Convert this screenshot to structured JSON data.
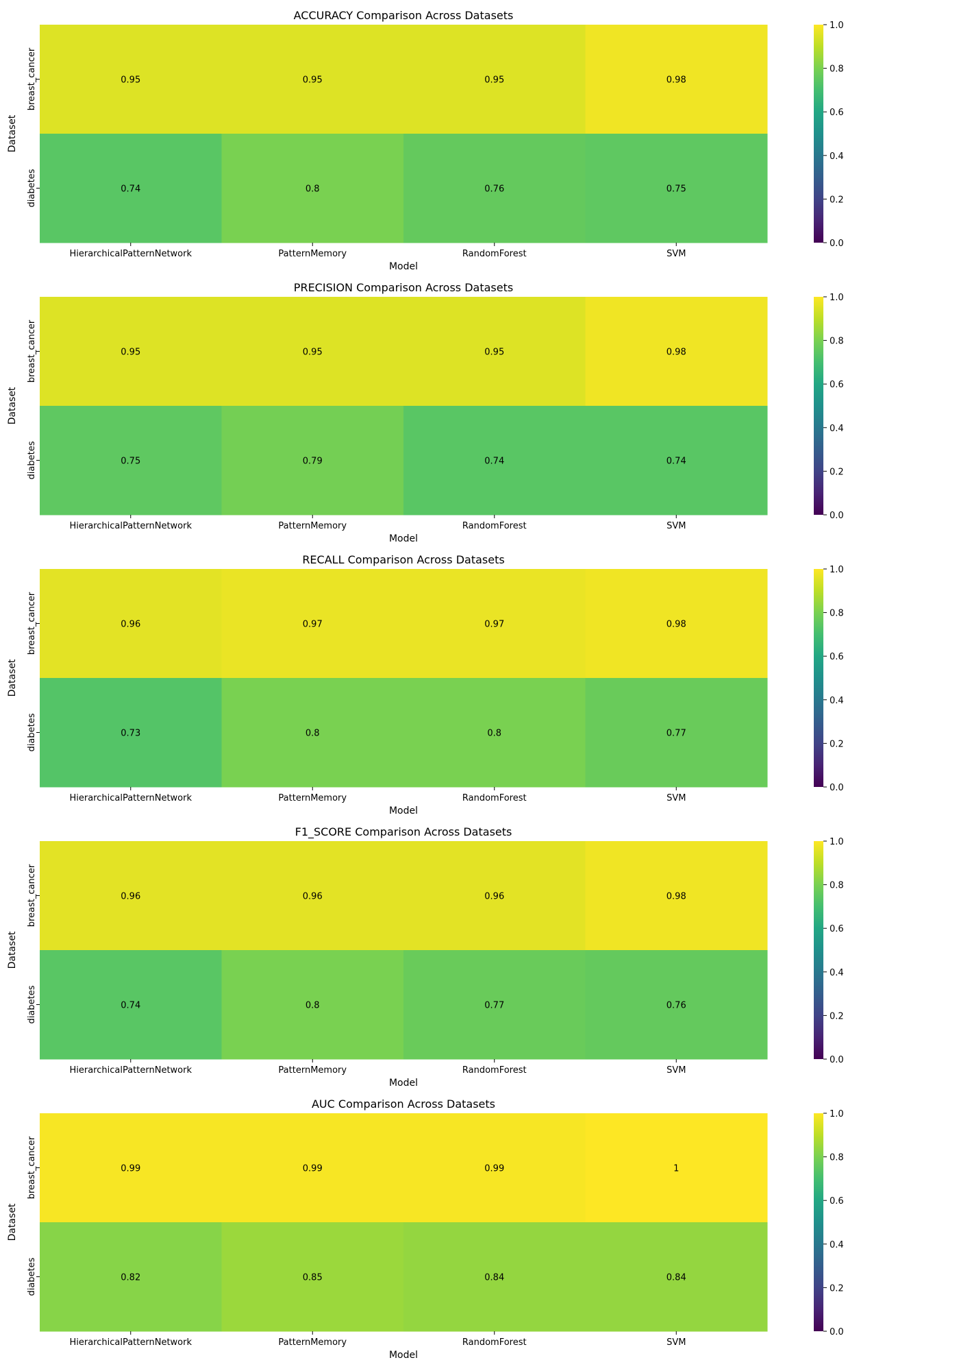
{
  "chart_data": [
    {
      "type": "heatmap",
      "title": "ACCURACY Comparison Across Datasets",
      "xlabel": "Model",
      "ylabel": "Dataset",
      "x": [
        "HierarchicalPatternNetwork",
        "PatternMemory",
        "RandomForest",
        "SVM"
      ],
      "y": [
        "breast_cancer",
        "diabetes"
      ],
      "values": [
        [
          0.95,
          0.95,
          0.95,
          0.98
        ],
        [
          0.74,
          0.8,
          0.76,
          0.75
        ]
      ],
      "colorbar": {
        "range": [
          0,
          1
        ],
        "ticks": [
          "0.0",
          "0.2",
          "0.4",
          "0.6",
          "0.8",
          "1.0"
        ]
      },
      "colormap": "viridis"
    },
    {
      "type": "heatmap",
      "title": "PRECISION Comparison Across Datasets",
      "xlabel": "Model",
      "ylabel": "Dataset",
      "x": [
        "HierarchicalPatternNetwork",
        "PatternMemory",
        "RandomForest",
        "SVM"
      ],
      "y": [
        "breast_cancer",
        "diabetes"
      ],
      "values": [
        [
          0.95,
          0.95,
          0.95,
          0.98
        ],
        [
          0.75,
          0.79,
          0.74,
          0.74
        ]
      ],
      "colorbar": {
        "range": [
          0,
          1
        ],
        "ticks": [
          "0.0",
          "0.2",
          "0.4",
          "0.6",
          "0.8",
          "1.0"
        ]
      },
      "colormap": "viridis"
    },
    {
      "type": "heatmap",
      "title": "RECALL Comparison Across Datasets",
      "xlabel": "Model",
      "ylabel": "Dataset",
      "x": [
        "HierarchicalPatternNetwork",
        "PatternMemory",
        "RandomForest",
        "SVM"
      ],
      "y": [
        "breast_cancer",
        "diabetes"
      ],
      "values": [
        [
          0.96,
          0.97,
          0.97,
          0.98
        ],
        [
          0.73,
          0.8,
          0.8,
          0.77
        ]
      ],
      "colorbar": {
        "range": [
          0,
          1
        ],
        "ticks": [
          "0.0",
          "0.2",
          "0.4",
          "0.6",
          "0.8",
          "1.0"
        ]
      },
      "colormap": "viridis"
    },
    {
      "type": "heatmap",
      "title": "F1_SCORE Comparison Across Datasets",
      "xlabel": "Model",
      "ylabel": "Dataset",
      "x": [
        "HierarchicalPatternNetwork",
        "PatternMemory",
        "RandomForest",
        "SVM"
      ],
      "y": [
        "breast_cancer",
        "diabetes"
      ],
      "values": [
        [
          0.96,
          0.96,
          0.96,
          0.98
        ],
        [
          0.74,
          0.8,
          0.77,
          0.76
        ]
      ],
      "colorbar": {
        "range": [
          0,
          1
        ],
        "ticks": [
          "0.0",
          "0.2",
          "0.4",
          "0.6",
          "0.8",
          "1.0"
        ]
      },
      "colormap": "viridis"
    },
    {
      "type": "heatmap",
      "title": "AUC Comparison Across Datasets",
      "xlabel": "Model",
      "ylabel": "Dataset",
      "x": [
        "HierarchicalPatternNetwork",
        "PatternMemory",
        "RandomForest",
        "SVM"
      ],
      "y": [
        "breast_cancer",
        "diabetes"
      ],
      "values": [
        [
          0.99,
          0.99,
          0.99,
          1
        ],
        [
          0.82,
          0.85,
          0.84,
          0.84
        ]
      ],
      "colorbar": {
        "range": [
          0,
          1
        ],
        "ticks": [
          "0.0",
          "0.2",
          "0.4",
          "0.6",
          "0.8",
          "1.0"
        ]
      },
      "colormap": "viridis"
    }
  ]
}
